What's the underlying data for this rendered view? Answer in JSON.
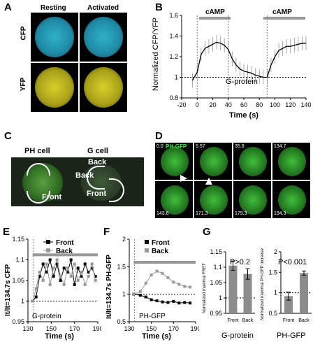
{
  "panels": {
    "A": {
      "label": "A",
      "col_resting": "Resting",
      "col_activated": "Activated",
      "row_cfp": "CFP",
      "row_yfp": "YFP"
    },
    "B": {
      "label": "B",
      "stim_left": "cAMP",
      "stim_right": "cAMP",
      "inset": "G-protein",
      "xlabel": "Time (s)",
      "ylabel": "Normalized CFP/YFP",
      "yticks": [
        "0.8",
        "1",
        "1.2",
        "1.4",
        "1.6"
      ],
      "xticks": [
        "-20",
        "0",
        "20",
        "40",
        "60",
        "80",
        "100",
        "120",
        "140"
      ]
    },
    "C": {
      "label": "C",
      "ph_cell": "PH cell",
      "g_cell": "G cell",
      "back1": "Back",
      "front1": "Front",
      "back2": "Back",
      "front2": "Front"
    },
    "D": {
      "label": "D",
      "title": "PH-GFP",
      "times": [
        "0.0",
        "5.57",
        "35.6",
        "134.7",
        "143.6",
        "171.3",
        "179.3",
        "194.3"
      ]
    },
    "E": {
      "label": "E",
      "ylabel": "It/It=134.7s CFP",
      "xlabel": "Time (s)",
      "inset": "G-protein",
      "legend_front": "Front",
      "legend_back": "Back",
      "yticks": [
        "0.95",
        "1",
        "1.05",
        "1.1",
        "1.15"
      ],
      "xticks": [
        "130",
        "150",
        "170",
        "190"
      ]
    },
    "F": {
      "label": "F",
      "ylabel": "It/It=134.7s PH-GFP",
      "xlabel": "Time (s)",
      "inset": "PH-GFP",
      "legend_front": "Front",
      "legend_back": "Back",
      "yticks": [
        "0.5",
        "1",
        "1.5",
        "2"
      ],
      "xticks": [
        "130",
        "150",
        "170",
        "190"
      ]
    },
    "G": {
      "label": "G",
      "left_ylabel": "Normalized maximal FRET",
      "right_ylabel": "Normalized maximal PH-GFP increase",
      "left_p": "P>0.2",
      "right_p": "P<0.001",
      "left_caption": "G-protein",
      "right_caption": "PH-GFP",
      "cats": [
        "Front",
        "Back"
      ],
      "left_yticks": [
        "0.95",
        "1",
        "1.05",
        "1.1",
        "1.15"
      ],
      "right_yticks": [
        "0.5",
        "1",
        "1.5",
        "2"
      ]
    }
  },
  "chart_data": [
    {
      "type": "line",
      "panel": "B",
      "xlabel": "Time (s)",
      "ylabel": "Normalized CFP/YFP",
      "xlim": [
        -20,
        140
      ],
      "ylim": [
        0.8,
        1.6
      ],
      "series": [
        {
          "values": [
            [
              -6,
              0.97
            ],
            [
              0,
              1.05
            ],
            [
              5,
              1.22
            ],
            [
              10,
              1.28
            ],
            [
              15,
              1.3
            ],
            [
              20,
              1.32
            ],
            [
              25,
              1.34
            ],
            [
              30,
              1.33
            ],
            [
              35,
              1.31
            ],
            [
              40,
              1.27
            ],
            [
              45,
              1.18
            ],
            [
              50,
              1.12
            ],
            [
              55,
              1.08
            ],
            [
              60,
              1.06
            ],
            [
              65,
              1.05
            ],
            [
              70,
              1.04
            ],
            [
              75,
              1.02
            ],
            [
              80,
              1.01
            ],
            [
              85,
              1.0
            ],
            [
              90,
              1.0
            ],
            [
              95,
              1.12
            ],
            [
              100,
              1.2
            ],
            [
              105,
              1.26
            ],
            [
              110,
              1.28
            ],
            [
              115,
              1.3
            ],
            [
              120,
              1.3
            ],
            [
              125,
              1.31
            ],
            [
              130,
              1.32
            ],
            [
              135,
              1.33
            ],
            [
              140,
              1.33
            ]
          ]
        }
      ]
    },
    {
      "type": "line",
      "panel": "E",
      "xlabel": "Time (s)",
      "xlim": [
        130,
        190
      ],
      "ylim": [
        0.95,
        1.15
      ],
      "series": [
        {
          "name": "Front",
          "values": [
            [
              134,
              1.0
            ],
            [
              137,
              1.01
            ],
            [
              140,
              1.06
            ],
            [
              143,
              1.09
            ],
            [
              146,
              1.07
            ],
            [
              149,
              1.1
            ],
            [
              152,
              1.06
            ],
            [
              155,
              1.09
            ],
            [
              158,
              1.05
            ],
            [
              161,
              1.08
            ],
            [
              164,
              1.07
            ],
            [
              167,
              1.1
            ],
            [
              170,
              1.04
            ],
            [
              173,
              1.08
            ],
            [
              176,
              1.06
            ],
            [
              179,
              1.09
            ],
            [
              182,
              1.07
            ],
            [
              185,
              1.08
            ],
            [
              188,
              1.06
            ]
          ]
        },
        {
          "name": "Back",
          "values": [
            [
              134,
              1.0
            ],
            [
              137,
              1.03
            ],
            [
              140,
              1.07
            ],
            [
              143,
              1.05
            ],
            [
              146,
              1.09
            ],
            [
              149,
              1.04
            ],
            [
              152,
              1.08
            ],
            [
              155,
              1.1
            ],
            [
              158,
              1.06
            ],
            [
              161,
              1.04
            ],
            [
              164,
              1.08
            ],
            [
              167,
              1.06
            ],
            [
              170,
              1.09
            ],
            [
              173,
              1.05
            ],
            [
              176,
              1.07
            ],
            [
              179,
              1.04
            ],
            [
              182,
              1.06
            ],
            [
              185,
              1.09
            ],
            [
              188,
              1.05
            ]
          ]
        }
      ]
    },
    {
      "type": "line",
      "panel": "F",
      "xlabel": "Time (s)",
      "xlim": [
        130,
        190
      ],
      "ylim": [
        0.5,
        2.0
      ],
      "series": [
        {
          "name": "Front",
          "values": [
            [
              134,
              1.0
            ],
            [
              140,
              0.98
            ],
            [
              145,
              0.95
            ],
            [
              150,
              0.9
            ],
            [
              155,
              0.88
            ],
            [
              160,
              0.86
            ],
            [
              165,
              0.85
            ],
            [
              170,
              0.87
            ],
            [
              175,
              0.84
            ],
            [
              180,
              0.85
            ],
            [
              185,
              0.84
            ]
          ]
        },
        {
          "name": "Back",
          "values": [
            [
              134,
              1.0
            ],
            [
              140,
              1.05
            ],
            [
              145,
              1.2
            ],
            [
              150,
              1.35
            ],
            [
              155,
              1.42
            ],
            [
              160,
              1.38
            ],
            [
              165,
              1.3
            ],
            [
              170,
              1.22
            ],
            [
              175,
              1.18
            ],
            [
              180,
              1.14
            ],
            [
              185,
              1.13
            ]
          ]
        }
      ]
    },
    {
      "type": "bar",
      "panel": "G-left",
      "categories": [
        "Front",
        "Back"
      ],
      "values": [
        1.105,
        1.078
      ],
      "errors": [
        0.015,
        0.017
      ],
      "ylim": [
        0.95,
        1.15
      ]
    },
    {
      "type": "bar",
      "panel": "G-right",
      "categories": [
        "Front",
        "Back"
      ],
      "values": [
        0.92,
        1.48
      ],
      "errors": [
        0.1,
        0.05
      ],
      "ylim": [
        0.5,
        2.0
      ]
    }
  ]
}
